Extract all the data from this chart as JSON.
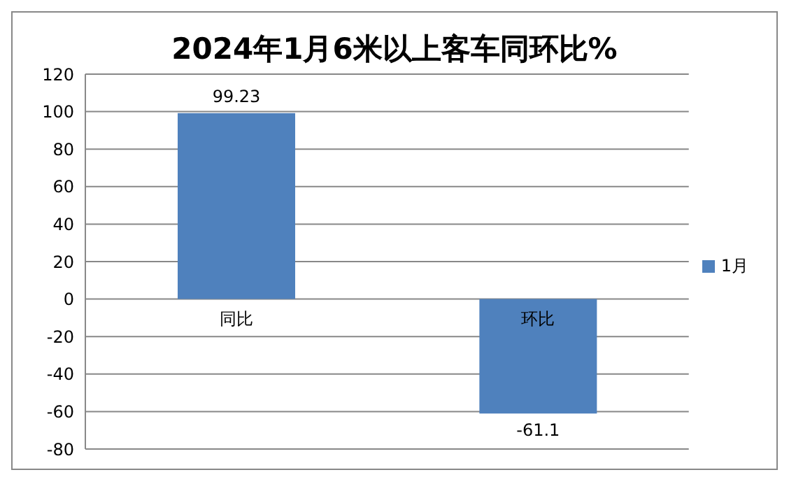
{
  "chart_data": {
    "type": "bar",
    "title": "2024年1月6米以上客车同环比%",
    "categories": [
      "同比",
      "环比"
    ],
    "series": [
      {
        "name": "1月",
        "color": "#4f81bd",
        "values": [
          99.23,
          -61.1
        ]
      }
    ],
    "ylim": [
      -80,
      120
    ],
    "yticks": [
      -80,
      -60,
      -40,
      -20,
      0,
      20,
      40,
      60,
      80,
      100,
      120
    ],
    "grid": "y",
    "legend": "right",
    "data_labels": true
  }
}
